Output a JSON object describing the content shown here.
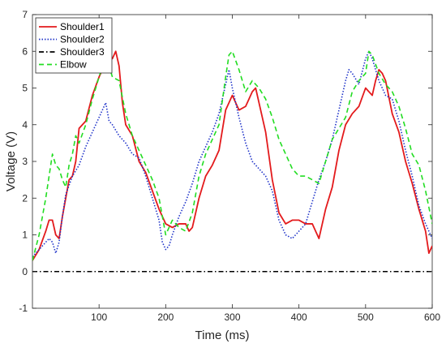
{
  "chart_data": {
    "type": "line",
    "title": "",
    "xlabel": "Time (ms)",
    "ylabel": "Voltage (V)",
    "xlim": [
      0,
      600
    ],
    "ylim": [
      -1,
      7
    ],
    "xticks": [
      "100",
      "200",
      "300",
      "400",
      "500",
      "600"
    ],
    "yticks": [
      "-1",
      "0",
      "1",
      "2",
      "3",
      "4",
      "5",
      "6",
      "7"
    ],
    "grid": false,
    "legend_position": "top-left",
    "series": [
      {
        "name": "Shoulder1",
        "color": "#e31a1c",
        "dash": "solid",
        "x": [
          0,
          10,
          20,
          25,
          30,
          35,
          40,
          45,
          50,
          55,
          60,
          65,
          70,
          80,
          90,
          100,
          110,
          115,
          120,
          125,
          130,
          135,
          140,
          150,
          160,
          170,
          180,
          190,
          200,
          210,
          220,
          230,
          235,
          240,
          250,
          260,
          270,
          280,
          290,
          300,
          310,
          320,
          330,
          335,
          340,
          350,
          360,
          370,
          380,
          390,
          400,
          410,
          420,
          430,
          440,
          450,
          460,
          470,
          480,
          490,
          500,
          510,
          515,
          520,
          525,
          530,
          540,
          550,
          560,
          570,
          580,
          590,
          595,
          600
        ],
        "y": [
          0.3,
          0.6,
          1.1,
          1.4,
          1.4,
          1.0,
          0.9,
          1.5,
          2.0,
          2.5,
          2.6,
          3.0,
          3.9,
          4.1,
          4.8,
          5.3,
          5.7,
          5.9,
          5.8,
          6.0,
          5.6,
          4.6,
          4.0,
          3.7,
          3.0,
          2.7,
          2.2,
          1.7,
          1.3,
          1.2,
          1.3,
          1.3,
          1.1,
          1.2,
          2.0,
          2.6,
          2.9,
          3.3,
          4.4,
          4.8,
          4.4,
          4.5,
          4.9,
          5.0,
          4.6,
          3.8,
          2.5,
          1.6,
          1.3,
          1.4,
          1.4,
          1.3,
          1.3,
          0.9,
          1.7,
          2.3,
          3.3,
          4.0,
          4.3,
          4.5,
          5.0,
          4.8,
          5.2,
          5.5,
          5.4,
          5.2,
          4.3,
          3.8,
          3.0,
          2.4,
          1.7,
          1.1,
          0.5,
          0.7
        ]
      },
      {
        "name": "Shoulder2",
        "color": "#1f33c9",
        "dash": "dotted",
        "x": [
          0,
          10,
          20,
          25,
          30,
          35,
          40,
          45,
          50,
          60,
          70,
          80,
          90,
          100,
          105,
          110,
          115,
          120,
          130,
          140,
          150,
          160,
          170,
          180,
          190,
          195,
          200,
          205,
          210,
          220,
          230,
          240,
          250,
          260,
          270,
          280,
          290,
          295,
          300,
          310,
          320,
          330,
          340,
          350,
          360,
          370,
          380,
          390,
          400,
          410,
          420,
          430,
          440,
          450,
          460,
          470,
          475,
          480,
          490,
          500,
          505,
          510,
          520,
          530,
          540,
          550,
          560,
          570,
          580,
          590,
          600
        ],
        "y": [
          0.4,
          0.6,
          0.8,
          0.9,
          0.8,
          0.5,
          0.8,
          1.5,
          2.1,
          2.6,
          2.9,
          3.4,
          3.8,
          4.2,
          4.4,
          4.6,
          4.1,
          4.0,
          3.7,
          3.5,
          3.2,
          3.1,
          2.6,
          2.0,
          1.4,
          0.8,
          0.6,
          0.7,
          1.0,
          1.5,
          1.9,
          2.4,
          3.0,
          3.4,
          3.8,
          4.3,
          5.1,
          5.5,
          5.0,
          4.2,
          3.5,
          3.0,
          2.8,
          2.6,
          2.2,
          1.4,
          1.0,
          0.9,
          1.1,
          1.3,
          1.9,
          2.5,
          3.0,
          3.6,
          4.4,
          5.2,
          5.5,
          5.4,
          5.1,
          5.8,
          6.0,
          5.8,
          5.2,
          4.8,
          4.7,
          4.1,
          3.3,
          2.6,
          1.8,
          1.3,
          0.9
        ]
      },
      {
        "name": "Shoulder3",
        "color": "#000000",
        "dash": "dashdot",
        "x": [
          0,
          600
        ],
        "y": [
          0,
          0
        ]
      },
      {
        "name": "Elbow",
        "color": "#22dd22",
        "dash": "dashed",
        "x": [
          0,
          10,
          20,
          25,
          30,
          35,
          40,
          45,
          50,
          55,
          60,
          65,
          70,
          80,
          90,
          100,
          105,
          110,
          115,
          120,
          130,
          140,
          150,
          160,
          170,
          180,
          190,
          200,
          210,
          220,
          230,
          240,
          250,
          260,
          270,
          280,
          290,
          295,
          300,
          310,
          320,
          330,
          335,
          340,
          350,
          360,
          370,
          380,
          390,
          400,
          410,
          420,
          430,
          440,
          450,
          460,
          470,
          480,
          490,
          500,
          505,
          510,
          520,
          530,
          540,
          550,
          560,
          570,
          580,
          590,
          600
        ],
        "y": [
          0.3,
          1.0,
          2.0,
          2.6,
          3.2,
          2.9,
          2.8,
          2.5,
          2.3,
          2.9,
          3.2,
          3.7,
          3.5,
          4.0,
          4.7,
          5.3,
          5.6,
          5.8,
          5.6,
          5.3,
          5.2,
          4.3,
          3.7,
          3.3,
          2.9,
          2.5,
          2.0,
          1.0,
          1.4,
          1.2,
          1.1,
          1.6,
          2.6,
          3.2,
          3.6,
          4.0,
          5.3,
          5.9,
          6.0,
          5.5,
          4.9,
          5.2,
          5.1,
          5.0,
          4.7,
          4.2,
          3.6,
          3.2,
          2.8,
          2.6,
          2.6,
          2.5,
          2.4,
          3.0,
          3.6,
          3.9,
          4.2,
          4.9,
          5.2,
          5.4,
          6.0,
          5.9,
          5.4,
          5.1,
          4.9,
          4.5,
          3.9,
          3.2,
          2.9,
          2.2,
          1.3
        ]
      }
    ]
  }
}
